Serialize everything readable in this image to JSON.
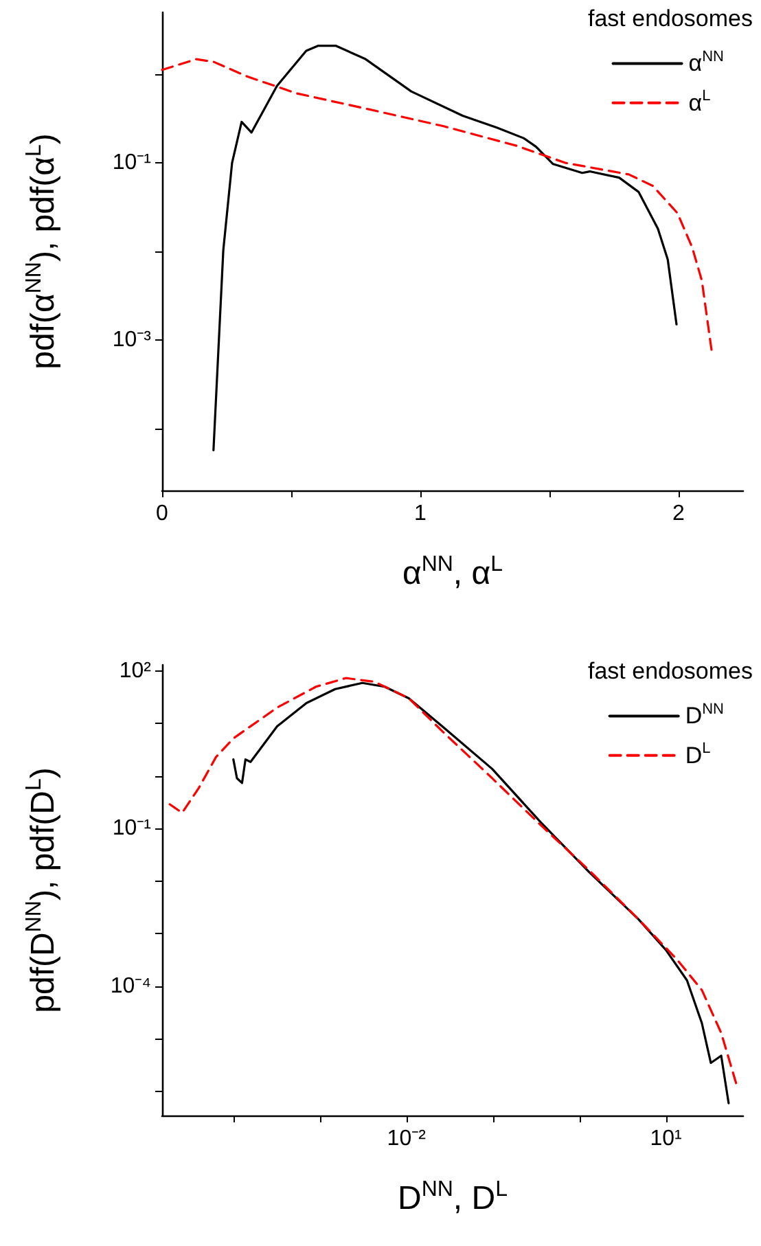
{
  "chart_data": [
    {
      "type": "line",
      "xlabel": "α$^{NN}$, α$^{L}$",
      "ylabel": "pdf(α$^{NN}$), pdf(α$^{L}$)",
      "legend_title": "fast endosomes",
      "legend": "top right",
      "grid": false,
      "marker": "none",
      "log": "y",
      "xlim": [
        0,
        2.25
      ],
      "xticks": [
        0,
        {
          "value": 0.5,
          "label": null
        },
        1,
        {
          "value": 1.5,
          "label": null
        },
        2
      ],
      "ylim": [
        2e-05,
        5
      ],
      "yticks": [
        {
          "value": 1,
          "label": null
        },
        {
          "value": 0.1,
          "label": "10⁻¹"
        },
        {
          "value": 0.01,
          "label": null
        },
        {
          "value": 0.001,
          "label": "10⁻³"
        },
        {
          "value": 0.0001,
          "label": null
        }
      ],
      "series": [
        {
          "name": "α$^{NN}$",
          "color": "#000000",
          "line_style": "solid",
          "x": [
            0.199,
            0.237,
            0.271,
            0.308,
            0.346,
            0.445,
            0.558,
            0.605,
            0.672,
            0.785,
            0.965,
            1.164,
            1.296,
            1.4,
            1.448,
            1.514,
            1.627,
            1.656,
            1.77,
            1.845,
            1.92,
            1.958,
            1.992
          ],
          "values": [
            5.7e-05,
            0.0103,
            0.1,
            0.29,
            0.22,
            0.74,
            1.84,
            2.1,
            2.1,
            1.5,
            0.64,
            0.34,
            0.25,
            0.19,
            0.152,
            0.097,
            0.077,
            0.08,
            0.068,
            0.047,
            0.018,
            0.0081,
            0.0015
          ]
        },
        {
          "name": "α$^{L}$",
          "color": "#ff0000",
          "line_style": "dashed",
          "x": [
            0,
            0.132,
            0.2,
            0.331,
            0.52,
            0.804,
            1.088,
            1.372,
            1.561,
            1.807,
            1.9,
            1.996,
            2.053,
            2.09,
            2.129
          ],
          "values": [
            1.12,
            1.48,
            1.38,
            0.94,
            0.61,
            0.4,
            0.26,
            0.156,
            0.1,
            0.074,
            0.055,
            0.027,
            0.011,
            0.0047,
            0.00072
          ]
        }
      ]
    },
    {
      "type": "line",
      "xlabel": "D$^{NN}$, D$^{L}$",
      "ylabel": "pdf(D$^{NN}$), pdf(D$^{L}$)",
      "legend_title": "fast endosomes",
      "legend": "top right",
      "grid": false,
      "marker": "none",
      "log": "xy",
      "xlim": [
        1.5e-05,
        78
      ],
      "xticks": [
        {
          "value": 0.0001,
          "label": null
        },
        {
          "value": 0.001,
          "label": null
        },
        {
          "value": 0.01,
          "label": "10⁻²"
        },
        {
          "value": 0.1,
          "label": null
        },
        {
          "value": 1,
          "label": null
        },
        {
          "value": 10,
          "label": "10¹"
        }
      ],
      "ylim": [
        3.5e-07,
        130
      ],
      "yticks": [
        {
          "value": 100,
          "label": "10²"
        },
        {
          "value": 10,
          "label": null
        },
        {
          "value": 1,
          "label": null
        },
        {
          "value": 0.1,
          "label": "10⁻¹"
        },
        {
          "value": 0.01,
          "label": null
        },
        {
          "value": 0.001,
          "label": null
        },
        {
          "value": 0.0001,
          "label": "10⁻⁴"
        },
        {
          "value": 1e-05,
          "label": null
        },
        {
          "value": 1e-06,
          "label": null
        }
      ],
      "series": [
        {
          "name": "D$^{NN}$",
          "color": "#000000",
          "line_style": "solid",
          "x": [
            0.0001,
            0.00011,
            0.000126,
            0.000138,
            0.000158,
            0.00022,
            0.00032,
            0.0007,
            0.0015,
            0.0031,
            0.0056,
            0.0107,
            0.026,
            0.098,
            0.36,
            1.3,
            4.8,
            10,
            17.5,
            26,
            33,
            43.5,
            53
          ],
          "values": [
            2.07,
            0.91,
            0.74,
            2.07,
            1.86,
            3.85,
            8.8,
            24.5,
            45,
            59,
            50,
            30,
            8.8,
            1.37,
            0.13,
            0.0148,
            0.0019,
            0.00049,
            0.00013,
            2e-05,
            3.5e-06,
            4.8e-06,
            6e-07
          ]
        },
        {
          "name": "D$^{L}$",
          "color": "#ff0000",
          "line_style": "dashed",
          "x": [
            1.84e-05,
            2.56e-05,
            4e-05,
            6.3e-05,
            0.0001,
            0.00032,
            0.0009,
            0.002,
            0.0043,
            0.0107,
            0.026,
            0.098,
            0.36,
            1.3,
            4.8,
            13.5,
            26,
            43.5,
            65
          ],
          "values": [
            0.29,
            0.2,
            0.6,
            2.3,
            5.2,
            20,
            50,
            73,
            62,
            30,
            7.1,
            0.91,
            0.115,
            0.016,
            0.0019,
            0.00032,
            8.5e-05,
            1.3e-05,
            1.4e-06
          ]
        }
      ]
    }
  ]
}
